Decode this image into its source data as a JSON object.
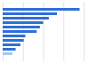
{
  "chart_data": {
    "type": "bar",
    "orientation": "horizontal",
    "categories": [
      null,
      null,
      null,
      null,
      null,
      null,
      null,
      null,
      null,
      null,
      null
    ],
    "values": [
      95,
      67,
      57,
      50,
      46,
      42,
      28,
      26,
      22,
      16,
      12
    ],
    "colors": [
      "#2f6fd8",
      "#2f6fd8",
      "#2f6fd8",
      "#2f6fd8",
      "#2f6fd8",
      "#2f6fd8",
      "#2f6fd8",
      "#2f6fd8",
      "#2f6fd8",
      "#2f6fd8",
      "#a9c5f2"
    ],
    "xlim": [
      0,
      100
    ],
    "xticks": [
      0,
      25,
      50,
      75,
      100
    ],
    "grid": true,
    "tick_labels": false
  }
}
